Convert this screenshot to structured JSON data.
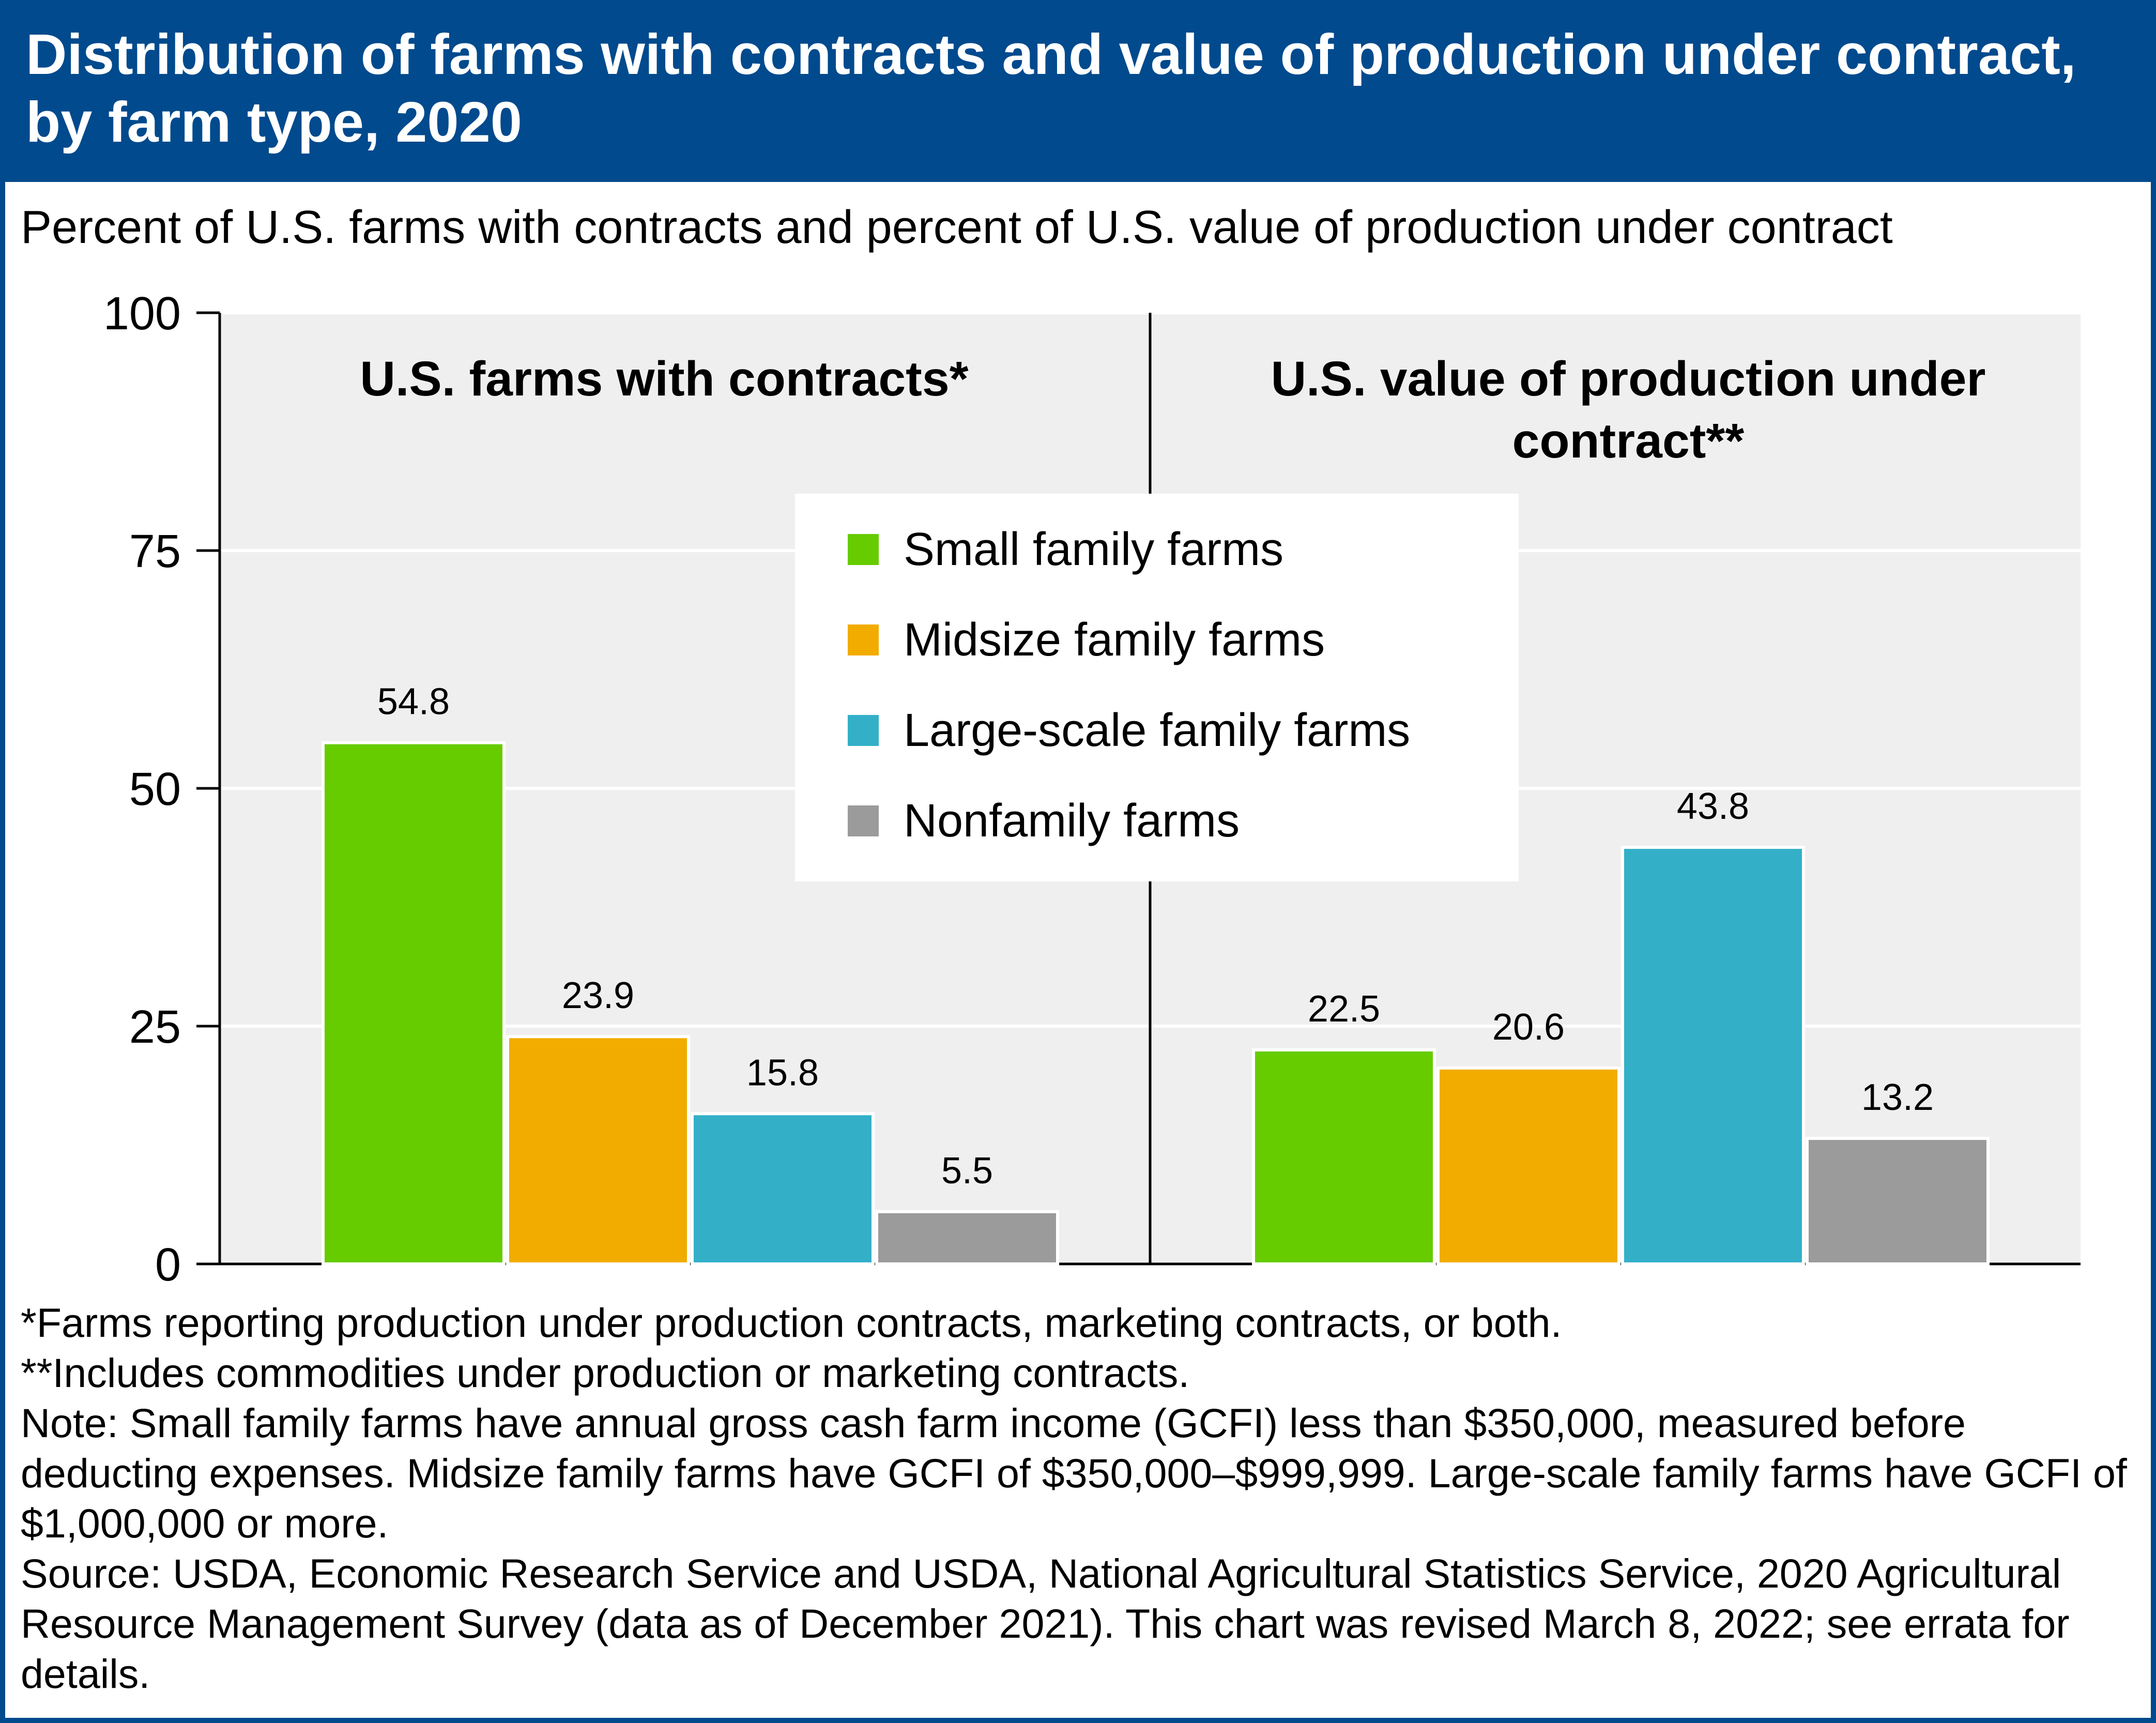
{
  "title": "Distribution of farms with contracts and value of production under contract, by farm type, 2020",
  "subtitle": "Percent of U.S. farms with contracts and percent of U.S. value of production under contract",
  "colors": {
    "header_bg": "#004a8d",
    "plot_bg": "#efefef",
    "small": "#66cc00",
    "midsize": "#f2ac00",
    "large": "#33b0c8",
    "nonfamily": "#9b9b9b"
  },
  "chart_data": {
    "type": "bar",
    "ylim": [
      0,
      100
    ],
    "yticks": [
      0,
      25,
      50,
      75,
      100
    ],
    "ylabel": "",
    "xlabel": "",
    "grid": true,
    "legend_position": "top-center",
    "legend": [
      "Small family farms",
      "Midsize family farms",
      "Large-scale family farms",
      "Nonfamily farms"
    ],
    "panels": [
      {
        "title_lines": [
          "U.S. farms with contracts*"
        ],
        "values": [
          54.8,
          23.9,
          15.8,
          5.5
        ],
        "labels": [
          "54.8",
          "23.9",
          "15.8",
          "5.5"
        ]
      },
      {
        "title_lines": [
          "U.S. value of production under",
          "contract**"
        ],
        "values": [
          22.5,
          20.6,
          43.8,
          13.2
        ],
        "labels": [
          "22.5",
          "20.6",
          "43.8",
          "13.2"
        ]
      }
    ]
  },
  "footnotes": [
    "*Farms reporting production under production contracts, marketing contracts, or both.",
    "**Includes commodities under production or marketing contracts.",
    "Note: Small family farms have annual gross cash farm income (GCFI) less than $350,000, measured before deducting expenses. Midsize family farms have GCFI of $350,000–$999,999. Large-scale family farms have GCFI of $1,000,000 or more.",
    "Source: USDA, Economic Research Service and USDA, National Agricultural Statistics Service, 2020 Agricultural Resource Management Survey (data as of December 2021). This chart was revised March 8, 2022; see errata for details."
  ]
}
